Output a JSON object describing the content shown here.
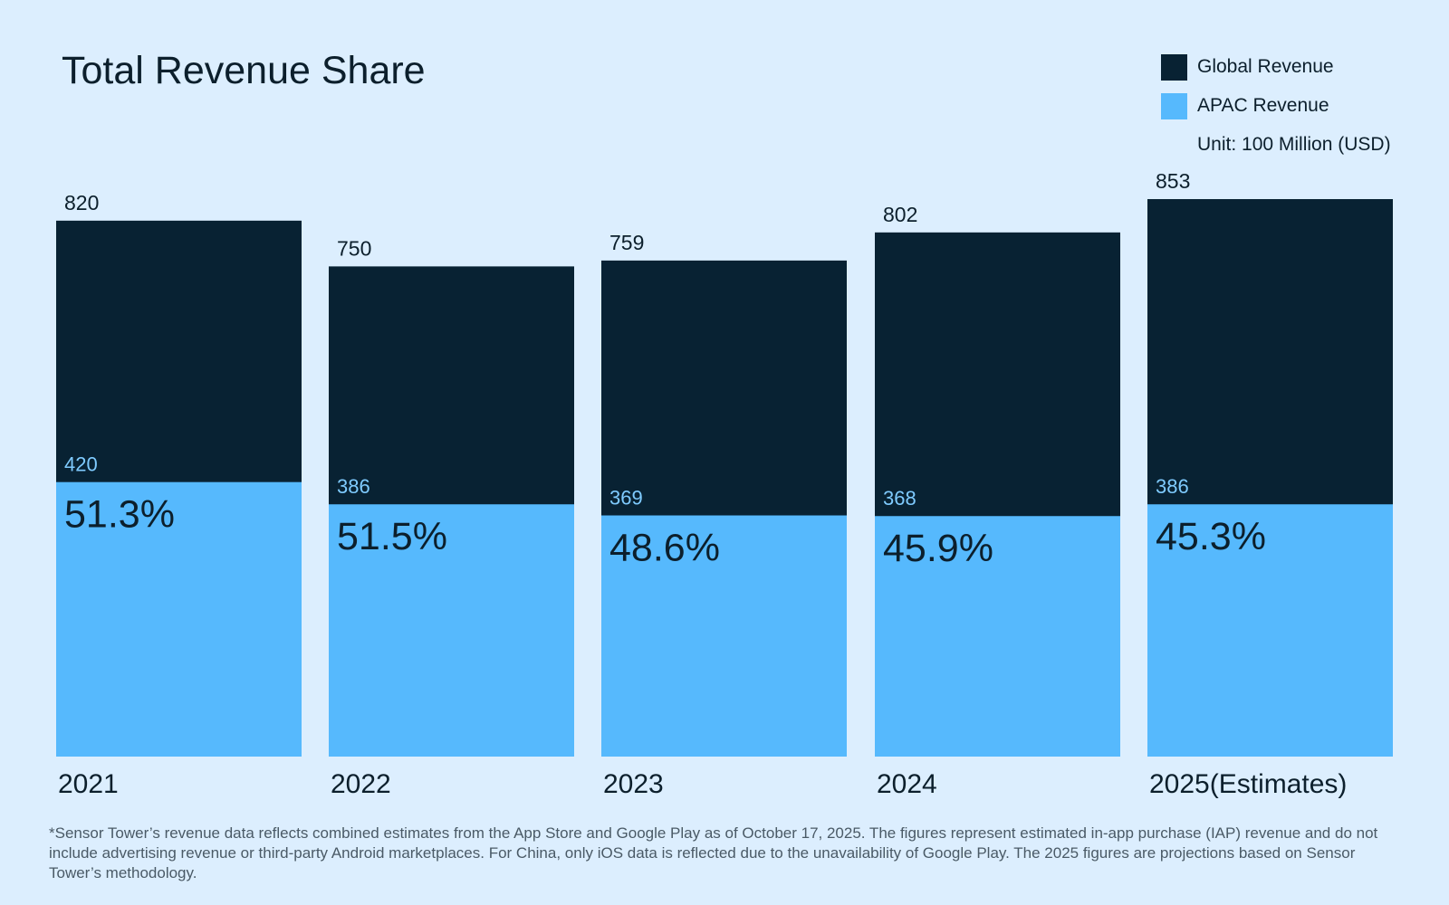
{
  "chart_data": {
    "type": "bar",
    "stacked": "overlay",
    "title": "Total Revenue Share",
    "unit_note": "Unit: 100 Million (USD)",
    "categories": [
      "2021",
      "2022",
      "2023",
      "2024",
      "2025(Estimates)"
    ],
    "series": [
      {
        "name": "Global Revenue",
        "color": "#082233",
        "values": [
          820,
          750,
          759,
          802,
          853
        ]
      },
      {
        "name": "APAC Revenue",
        "color": "#56b9fd",
        "values": [
          420,
          386,
          369,
          368,
          386
        ]
      }
    ],
    "share_labels": [
      "51.3%",
      "51.5%",
      "48.6%",
      "45.9%",
      "45.3%"
    ],
    "ylim": [
      0,
      853
    ],
    "grid": false,
    "legend": "top-right",
    "xlabel": "",
    "ylabel": ""
  },
  "colors": {
    "background": "#dceefe",
    "apac_label": "#7fcbff",
    "text": "#0c1f2c"
  },
  "footnote": "*Sensor Tower’s revenue data reflects combined estimates from the App Store and Google Play as of October 17, 2025. The figures represent estimated in-app purchase (IAP) revenue and do not include advertising revenue or third-party Android marketplaces. For China, only iOS data is reflected due to the unavailability of Google Play. The 2025 figures are projections based on Sensor Tower’s methodology."
}
